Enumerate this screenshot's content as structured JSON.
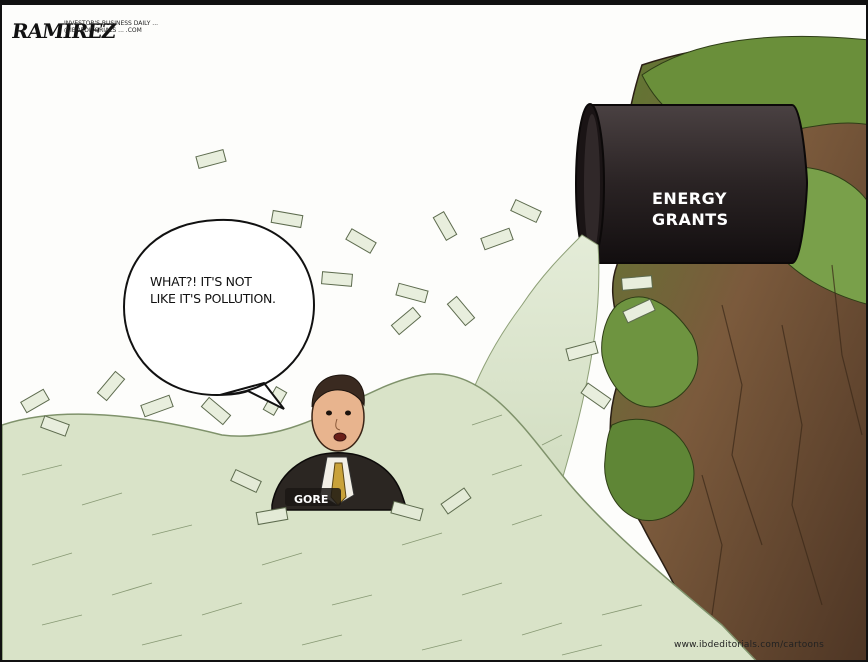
{
  "cartoon": {
    "artist_signature": "RAMIREZ",
    "artist_subtext": "INVESTOR'S BUSINESS DAILY ... @IBDEDITORIALS ... .COM",
    "speech_bubble_text": "WHAT?! IT'S NOT LIKE IT'S POLLUTION.",
    "pipe_label": "ENERGY GRANTS",
    "character_label": "GORE",
    "credit_url": "www.ibdeditorials.com/cartoons"
  },
  "colors": {
    "frame_border": "#111111",
    "pipe": "#2a2324",
    "foliage": "#6a8f3a",
    "rock": "#7b5a3c",
    "money": "#d9e3c8",
    "suit": "#2b2622",
    "skin": "#e8b48e"
  }
}
